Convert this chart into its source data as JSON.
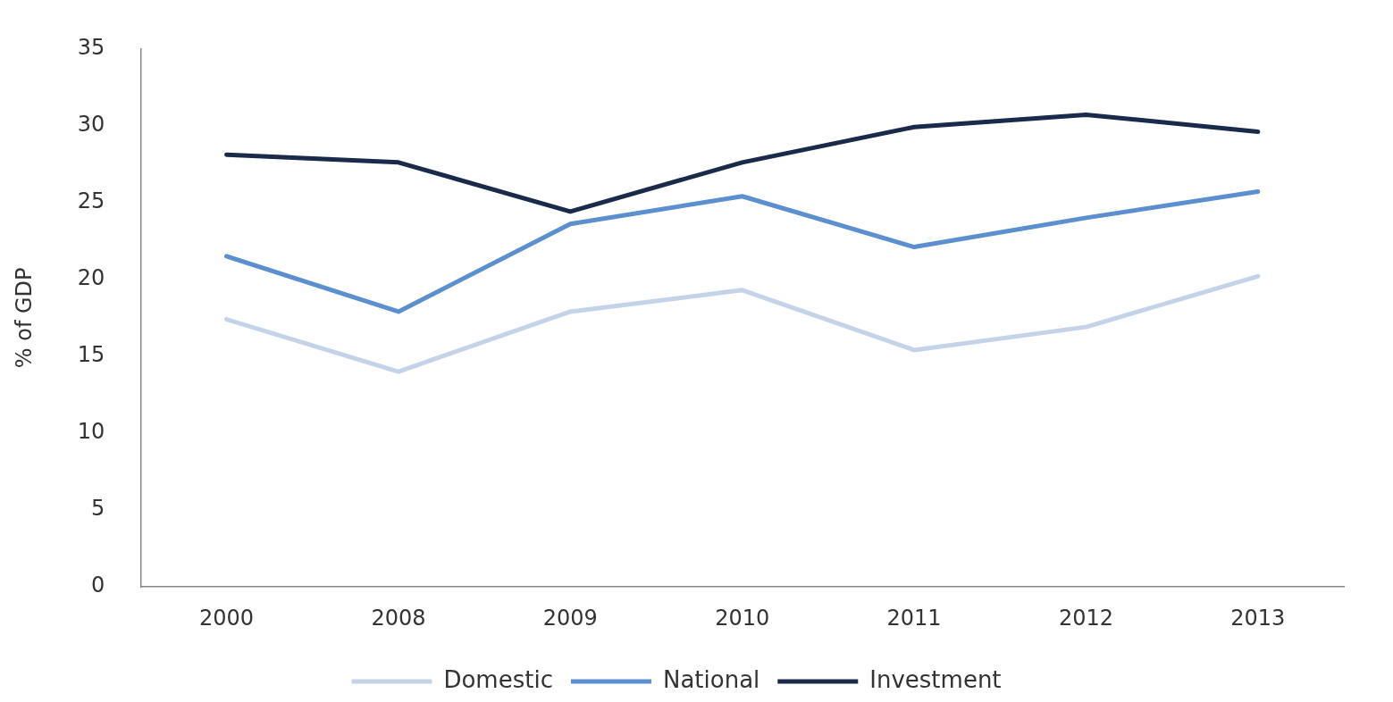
{
  "chart_data": {
    "type": "line",
    "ylabel": "% of GDP",
    "categories": [
      "2000",
      "2008",
      "2009",
      "2010",
      "2011",
      "2012",
      "2013"
    ],
    "series": [
      {
        "name": "Domestic",
        "color": "#c5d3e8",
        "values": [
          17.4,
          14.0,
          17.9,
          19.3,
          15.4,
          16.9,
          20.2
        ]
      },
      {
        "name": "National",
        "color": "#5b8fd0",
        "values": [
          21.5,
          17.9,
          23.6,
          25.4,
          22.1,
          24.0,
          25.7
        ]
      },
      {
        "name": "Investment",
        "color": "#1a2a4a",
        "values": [
          28.1,
          27.6,
          24.4,
          27.6,
          29.9,
          30.7,
          29.6
        ]
      }
    ],
    "ylim": [
      0,
      35
    ],
    "yticks": [
      0,
      5,
      10,
      15,
      20,
      25,
      30,
      35
    ],
    "grid": false,
    "legend": "bottom",
    "marker": "none",
    "line_style": "solid"
  }
}
